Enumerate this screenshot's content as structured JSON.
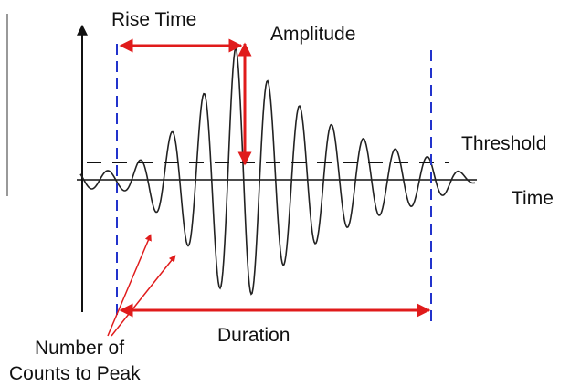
{
  "labels": {
    "rise_time": "Rise Time",
    "amplitude": "Amplitude",
    "threshold": "Threshold",
    "time": "Time",
    "duration": "Duration",
    "counts_line1": "Number of",
    "counts_line2": "Counts to Peak"
  }
}
